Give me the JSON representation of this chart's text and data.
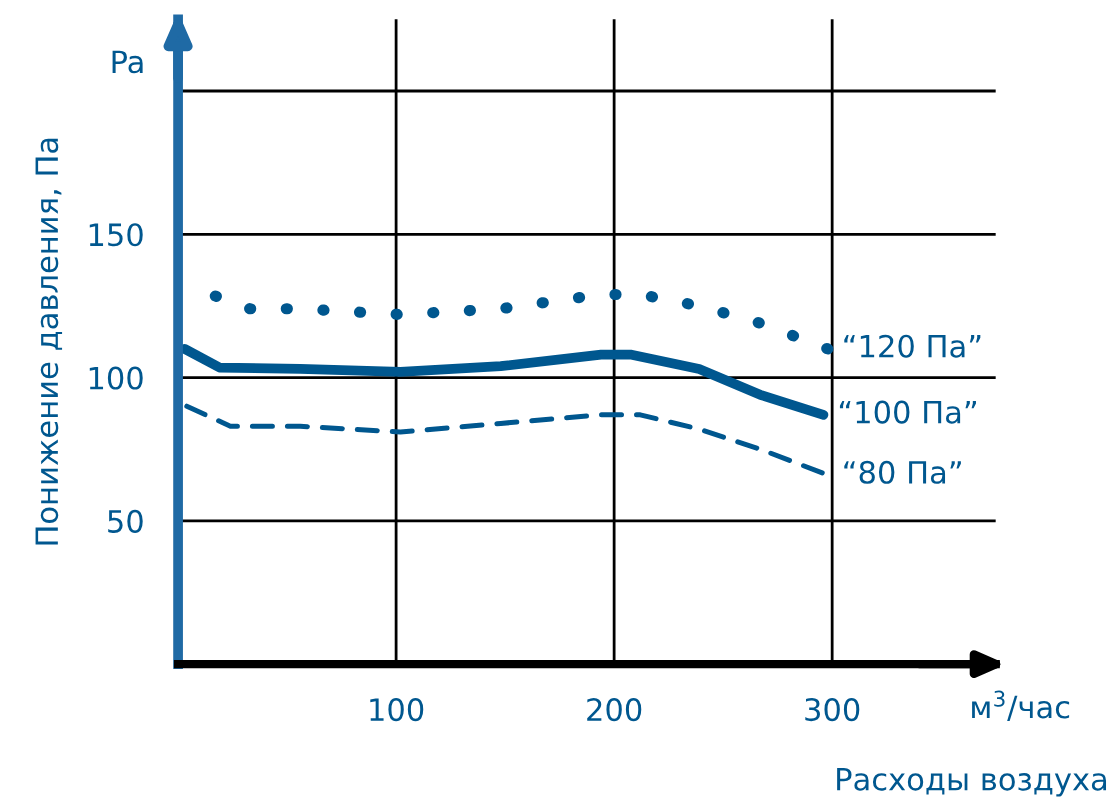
{
  "chart_data": {
    "type": "line",
    "ylabel": "Понижение давления, Па",
    "xlabel": "Расходы воздуха",
    "annotations": [
      "Pa",
      "м$^{3}$/час"
    ],
    "xlim": [
      0,
      375
    ],
    "ylim": [
      0,
      225
    ],
    "xticks": [
      100,
      200,
      300
    ],
    "yticks": [
      50,
      100,
      150,
      {
        "value": 200,
        "label": null
      }
    ],
    "grid": true,
    "legend": false,
    "series": [
      {
        "name": "“120 Па”",
        "color": "#00578f",
        "line_style": "dotted",
        "x": [
          5,
          24,
          33,
          56,
          102,
          148,
          194,
          212,
          239,
          267,
          298
        ],
        "values": [
          131,
          127,
          124,
          124,
          122,
          124,
          129,
          129,
          125,
          119,
          110
        ]
      },
      {
        "name": "“100 Па”",
        "color": "#00578f",
        "line_style": "solid",
        "x": [
          3,
          19,
          56,
          102,
          148,
          194,
          208,
          239,
          267,
          296
        ],
        "values": [
          110,
          103.5,
          103,
          102,
          104,
          108,
          108,
          103,
          94,
          87
        ]
      },
      {
        "name": "“80 Па”",
        "color": "#00578f",
        "line_style": "dashed",
        "x": [
          4,
          24,
          56,
          102,
          148,
          194,
          212,
          239,
          267,
          298
        ],
        "values": [
          90,
          83,
          83,
          81,
          84,
          87,
          87,
          82,
          75,
          66
        ]
      }
    ]
  }
}
